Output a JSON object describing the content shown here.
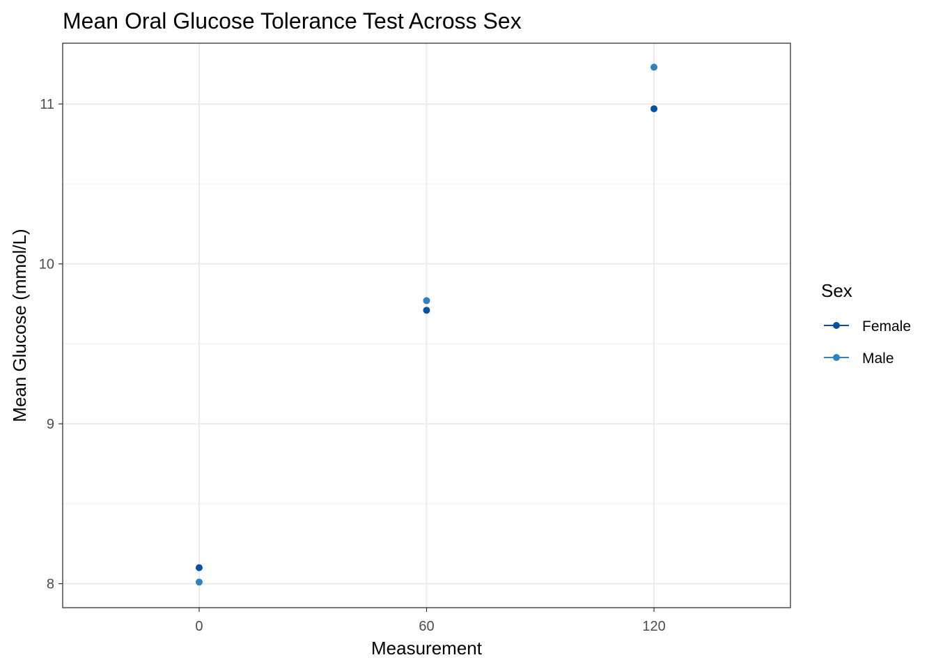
{
  "chart_data": {
    "type": "scatter",
    "title": "Mean Oral Glucose Tolerance Test Across Sex",
    "xlabel": "Measurement",
    "ylabel": "Mean Glucose (mmol/L)",
    "xlim": [
      -36,
      156
    ],
    "ylim": [
      7.85,
      11.38
    ],
    "x_ticks": [
      0,
      60,
      120
    ],
    "x_tick_labels": [
      "0",
      "60",
      "120"
    ],
    "y_ticks": [
      8,
      9,
      10,
      11
    ],
    "y_tick_labels": [
      "8",
      "9",
      "10",
      "11"
    ],
    "y_minor_ticks": [
      8.5,
      9.5,
      10.5
    ],
    "grid": true,
    "legend": {
      "title": "Sex",
      "position": "right"
    },
    "series": [
      {
        "name": "Female",
        "color": "#08519c",
        "x": [
          0,
          60,
          120
        ],
        "y": [
          8.1,
          9.71,
          10.97
        ]
      },
      {
        "name": "Male",
        "color": "#3182bd",
        "x": [
          0,
          60,
          120
        ],
        "y": [
          8.01,
          9.77,
          11.23
        ]
      }
    ]
  }
}
